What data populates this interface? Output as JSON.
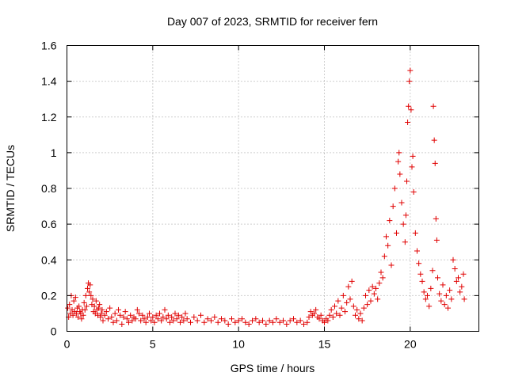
{
  "chart_data": {
    "type": "scatter",
    "title": "Day 007 of 2023, SRMTID for receiver fern",
    "xlabel": "GPS time / hours",
    "ylabel": "SRMTID / TECUs",
    "xlim": [
      0,
      24
    ],
    "ylim": [
      0,
      1.6
    ],
    "xticks": [
      0,
      5,
      10,
      15,
      20
    ],
    "yticks": [
      0,
      0.2,
      0.4,
      0.6,
      0.8,
      1,
      1.2,
      1.4,
      1.6
    ],
    "ytick_labels": [
      "0",
      "0.2",
      "0.4",
      "0.6",
      "0.8",
      "1",
      "1.2",
      "1.4",
      "1.6"
    ],
    "grid": true,
    "series": [
      {
        "name": "fern",
        "color": "#e00000",
        "marker": "plus",
        "points": [
          [
            0.05,
            0.13
          ],
          [
            0.1,
            0.08
          ],
          [
            0.15,
            0.15
          ],
          [
            0.2,
            0.1
          ],
          [
            0.25,
            0.2
          ],
          [
            0.3,
            0.12
          ],
          [
            0.35,
            0.09
          ],
          [
            0.4,
            0.17
          ],
          [
            0.45,
            0.11
          ],
          [
            0.5,
            0.19
          ],
          [
            0.55,
            0.1
          ],
          [
            0.6,
            0.13
          ],
          [
            0.65,
            0.08
          ],
          [
            0.7,
            0.14
          ],
          [
            0.75,
            0.11
          ],
          [
            0.8,
            0.1
          ],
          [
            0.85,
            0.07
          ],
          [
            0.9,
            0.12
          ],
          [
            0.95,
            0.09
          ],
          [
            1.0,
            0.16
          ],
          [
            1.05,
            0.12
          ],
          [
            1.1,
            0.2
          ],
          [
            1.15,
            0.14
          ],
          [
            1.2,
            0.24
          ],
          [
            1.25,
            0.27
          ],
          [
            1.3,
            0.22
          ],
          [
            1.35,
            0.26
          ],
          [
            1.4,
            0.2
          ],
          [
            1.45,
            0.15
          ],
          [
            1.5,
            0.18
          ],
          [
            1.55,
            0.11
          ],
          [
            1.6,
            0.14
          ],
          [
            1.65,
            0.1
          ],
          [
            1.7,
            0.17
          ],
          [
            1.75,
            0.12
          ],
          [
            1.8,
            0.09
          ],
          [
            1.85,
            0.13
          ],
          [
            1.9,
            0.15
          ],
          [
            1.95,
            0.08
          ],
          [
            2.0,
            0.1
          ],
          [
            2.05,
            0.12
          ],
          [
            2.1,
            0.06
          ],
          [
            2.2,
            0.09
          ],
          [
            2.3,
            0.11
          ],
          [
            2.4,
            0.07
          ],
          [
            2.5,
            0.13
          ],
          [
            2.6,
            0.08
          ],
          [
            2.7,
            0.05
          ],
          [
            2.8,
            0.1
          ],
          [
            2.9,
            0.06
          ],
          [
            3.0,
            0.12
          ],
          [
            3.1,
            0.09
          ],
          [
            3.2,
            0.04
          ],
          [
            3.3,
            0.08
          ],
          [
            3.4,
            0.11
          ],
          [
            3.5,
            0.07
          ],
          [
            3.6,
            0.05
          ],
          [
            3.7,
            0.09
          ],
          [
            3.8,
            0.06
          ],
          [
            3.9,
            0.08
          ],
          [
            4.0,
            0.07
          ],
          [
            4.1,
            0.12
          ],
          [
            4.2,
            0.1
          ],
          [
            4.3,
            0.06
          ],
          [
            4.4,
            0.09
          ],
          [
            4.5,
            0.07
          ],
          [
            4.6,
            0.05
          ],
          [
            4.7,
            0.08
          ],
          [
            4.8,
            0.1
          ],
          [
            4.9,
            0.06
          ],
          [
            5.0,
            0.08
          ],
          [
            5.1,
            0.05
          ],
          [
            5.2,
            0.09
          ],
          [
            5.3,
            0.07
          ],
          [
            5.4,
            0.1
          ],
          [
            5.5,
            0.06
          ],
          [
            5.6,
            0.08
          ],
          [
            5.7,
            0.12
          ],
          [
            5.8,
            0.07
          ],
          [
            5.9,
            0.09
          ],
          [
            6.0,
            0.05
          ],
          [
            6.1,
            0.08
          ],
          [
            6.2,
            0.06
          ],
          [
            6.3,
            0.1
          ],
          [
            6.4,
            0.07
          ],
          [
            6.5,
            0.09
          ],
          [
            6.6,
            0.05
          ],
          [
            6.7,
            0.08
          ],
          [
            6.8,
            0.06
          ],
          [
            6.9,
            0.1
          ],
          [
            7.0,
            0.07
          ],
          [
            7.2,
            0.05
          ],
          [
            7.4,
            0.08
          ],
          [
            7.6,
            0.06
          ],
          [
            7.8,
            0.09
          ],
          [
            8.0,
            0.05
          ],
          [
            8.2,
            0.07
          ],
          [
            8.4,
            0.06
          ],
          [
            8.6,
            0.08
          ],
          [
            8.8,
            0.05
          ],
          [
            9.0,
            0.07
          ],
          [
            9.2,
            0.06
          ],
          [
            9.4,
            0.04
          ],
          [
            9.6,
            0.07
          ],
          [
            9.8,
            0.05
          ],
          [
            10.0,
            0.06
          ],
          [
            10.2,
            0.07
          ],
          [
            10.4,
            0.05
          ],
          [
            10.6,
            0.04
          ],
          [
            10.8,
            0.06
          ],
          [
            11.0,
            0.07
          ],
          [
            11.2,
            0.05
          ],
          [
            11.4,
            0.06
          ],
          [
            11.6,
            0.04
          ],
          [
            11.8,
            0.06
          ],
          [
            12.0,
            0.05
          ],
          [
            12.2,
            0.07
          ],
          [
            12.4,
            0.05
          ],
          [
            12.6,
            0.06
          ],
          [
            12.8,
            0.04
          ],
          [
            13.0,
            0.06
          ],
          [
            13.2,
            0.07
          ],
          [
            13.4,
            0.05
          ],
          [
            13.6,
            0.06
          ],
          [
            13.8,
            0.04
          ],
          [
            14.0,
            0.05
          ],
          [
            14.1,
            0.08
          ],
          [
            14.2,
            0.11
          ],
          [
            14.3,
            0.09
          ],
          [
            14.4,
            0.1
          ],
          [
            14.5,
            0.12
          ],
          [
            14.6,
            0.08
          ],
          [
            14.7,
            0.07
          ],
          [
            14.8,
            0.09
          ],
          [
            14.9,
            0.06
          ],
          [
            15.0,
            0.05
          ],
          [
            15.1,
            0.07
          ],
          [
            15.2,
            0.06
          ],
          [
            15.3,
            0.09
          ],
          [
            15.4,
            0.12
          ],
          [
            15.5,
            0.08
          ],
          [
            15.6,
            0.14
          ],
          [
            15.7,
            0.1
          ],
          [
            15.8,
            0.17
          ],
          [
            15.9,
            0.09
          ],
          [
            16.0,
            0.13
          ],
          [
            16.1,
            0.2
          ],
          [
            16.2,
            0.11
          ],
          [
            16.3,
            0.16
          ],
          [
            16.4,
            0.25
          ],
          [
            16.5,
            0.18
          ],
          [
            16.6,
            0.28
          ],
          [
            16.7,
            0.14
          ],
          [
            16.8,
            0.09
          ],
          [
            16.9,
            0.12
          ],
          [
            17.0,
            0.07
          ],
          [
            17.1,
            0.1
          ],
          [
            17.2,
            0.06
          ],
          [
            17.3,
            0.13
          ],
          [
            17.4,
            0.2
          ],
          [
            17.5,
            0.15
          ],
          [
            17.6,
            0.23
          ],
          [
            17.7,
            0.17
          ],
          [
            17.8,
            0.25
          ],
          [
            17.9,
            0.21
          ],
          [
            18.0,
            0.24
          ],
          [
            18.1,
            0.18
          ],
          [
            18.2,
            0.27
          ],
          [
            18.3,
            0.33
          ],
          [
            18.4,
            0.3
          ],
          [
            18.5,
            0.42
          ],
          [
            18.6,
            0.53
          ],
          [
            18.7,
            0.48
          ],
          [
            18.8,
            0.62
          ],
          [
            18.9,
            0.37
          ],
          [
            19.0,
            0.7
          ],
          [
            19.1,
            0.8
          ],
          [
            19.2,
            0.55
          ],
          [
            19.3,
            0.95
          ],
          [
            19.35,
            1.0
          ],
          [
            19.4,
            0.88
          ],
          [
            19.5,
            0.72
          ],
          [
            19.6,
            0.6
          ],
          [
            19.7,
            0.5
          ],
          [
            19.75,
            0.65
          ],
          [
            19.8,
            0.84
          ],
          [
            19.85,
            1.17
          ],
          [
            19.9,
            1.26
          ],
          [
            19.95,
            1.4
          ],
          [
            20.0,
            1.46
          ],
          [
            20.05,
            1.24
          ],
          [
            20.1,
            0.92
          ],
          [
            20.15,
            0.98
          ],
          [
            20.2,
            0.78
          ],
          [
            20.3,
            0.55
          ],
          [
            20.4,
            0.45
          ],
          [
            20.5,
            0.38
          ],
          [
            20.6,
            0.32
          ],
          [
            20.7,
            0.28
          ],
          [
            20.8,
            0.22
          ],
          [
            20.9,
            0.18
          ],
          [
            21.0,
            0.2
          ],
          [
            21.1,
            0.14
          ],
          [
            21.2,
            0.24
          ],
          [
            21.3,
            0.34
          ],
          [
            21.35,
            1.26
          ],
          [
            21.4,
            1.07
          ],
          [
            21.45,
            0.94
          ],
          [
            21.5,
            0.63
          ],
          [
            21.55,
            0.51
          ],
          [
            21.6,
            0.3
          ],
          [
            21.7,
            0.21
          ],
          [
            21.8,
            0.17
          ],
          [
            21.9,
            0.26
          ],
          [
            22.0,
            0.15
          ],
          [
            22.1,
            0.2
          ],
          [
            22.2,
            0.13
          ],
          [
            22.3,
            0.23
          ],
          [
            22.4,
            0.18
          ],
          [
            22.5,
            0.4
          ],
          [
            22.6,
            0.35
          ],
          [
            22.7,
            0.28
          ],
          [
            22.8,
            0.3
          ],
          [
            22.9,
            0.22
          ],
          [
            23.0,
            0.25
          ],
          [
            23.1,
            0.32
          ],
          [
            23.15,
            0.18
          ]
        ]
      }
    ]
  }
}
